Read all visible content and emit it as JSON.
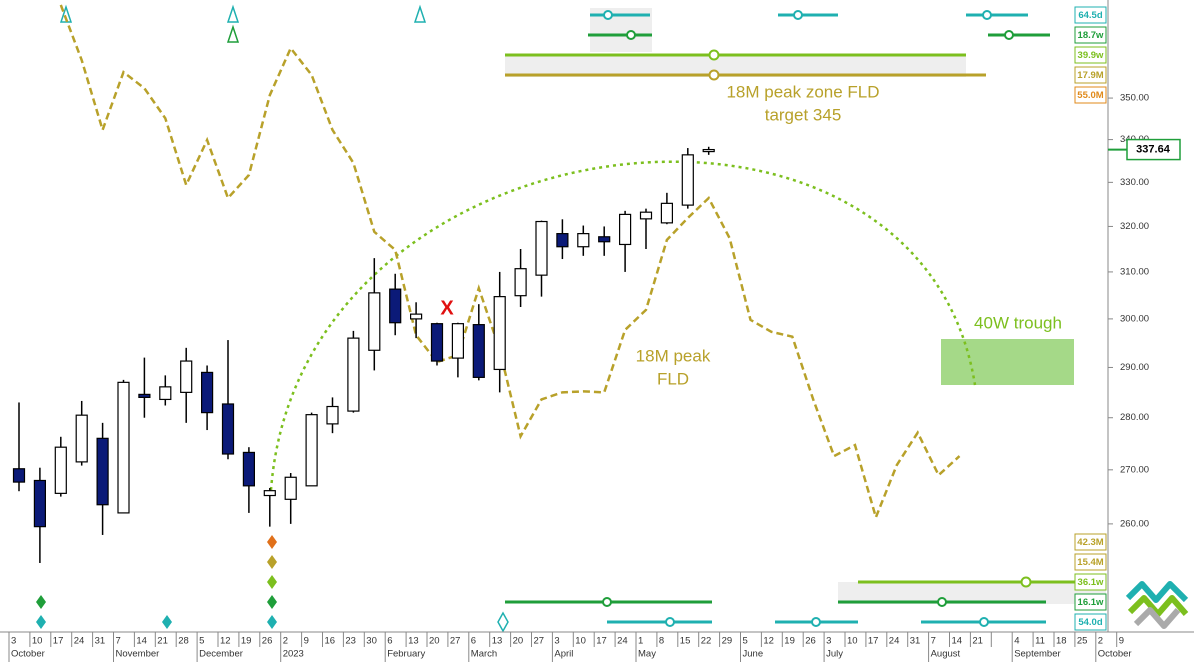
{
  "chart_data": {
    "type": "candlestick",
    "categories": [
      "3",
      "10",
      "17",
      "24",
      "31",
      "7",
      "14",
      "21",
      "28",
      "5",
      "12",
      "19",
      "26",
      "2",
      "9",
      "16",
      "23",
      "30",
      "6",
      "13",
      "20",
      "27",
      "6",
      "13",
      "20",
      "27",
      "3",
      "10",
      "17",
      "24",
      "1",
      "8",
      "15",
      "22",
      "29",
      "5",
      "12",
      "19",
      "26",
      "3",
      "10",
      "17",
      "24",
      "31",
      "7",
      "14",
      "21",
      null,
      "4",
      "11",
      "18",
      "25",
      "2",
      "9"
    ],
    "x_months": [
      "October",
      null,
      null,
      null,
      null,
      "November",
      null,
      null,
      null,
      "December",
      null,
      null,
      null,
      "2023",
      null,
      null,
      null,
      null,
      "February",
      null,
      null,
      null,
      "March",
      null,
      null,
      null,
      "April",
      null,
      null,
      null,
      "May",
      null,
      null,
      null,
      null,
      "June",
      null,
      null,
      null,
      "July",
      null,
      null,
      null,
      null,
      "August",
      null,
      null,
      null,
      "September",
      null,
      null,
      null,
      "October",
      null
    ],
    "open": [
      270.2,
      268,
      265.6,
      271.5,
      276,
      262,
      284.6,
      283.6,
      285,
      289,
      282.7,
      273.3,
      265.2,
      264.5,
      267,
      278.8,
      281.3,
      293.5,
      306.3,
      300,
      299,
      291.9,
      298.8,
      289.6,
      304.9,
      309.3,
      318.4,
      315.5,
      317.7,
      316,
      321.7,
      320.8,
      324.8,
      337.6,
      null,
      null,
      null,
      null,
      null,
      null,
      null,
      null,
      null,
      null,
      null,
      null,
      null,
      null,
      null,
      null,
      null,
      null,
      null,
      null
    ],
    "high": [
      283,
      270.4,
      276.3,
      283.3,
      279,
      287.5,
      292,
      288.4,
      294,
      290.4,
      295.6,
      274.3,
      266.6,
      269.4,
      281,
      284,
      297.5,
      313,
      309.6,
      303.5,
      299.2,
      299.2,
      303.1,
      310,
      315,
      321.3,
      321.6,
      320.2,
      320,
      323.5,
      324,
      327.6,
      338,
      338.3,
      null,
      null,
      null,
      null,
      null,
      null,
      null,
      null,
      null,
      null,
      null,
      null,
      null,
      null,
      null,
      null,
      null,
      null,
      null,
      null
    ],
    "low": [
      266,
      253,
      265,
      270.8,
      258,
      262,
      280,
      282.4,
      279,
      277.6,
      272,
      262,
      259.5,
      260,
      267,
      277,
      281,
      289.4,
      296.6,
      296,
      290.4,
      288,
      287.4,
      285,
      302.5,
      304.7,
      312.8,
      313.5,
      313.5,
      310,
      315,
      320.5,
      324,
      336.4,
      null,
      null,
      null,
      null,
      null,
      null,
      null,
      null,
      null,
      null,
      null,
      null,
      null,
      null,
      null,
      null,
      null,
      null,
      null,
      null
    ],
    "close": [
      267.7,
      259.5,
      274.3,
      280.5,
      263.5,
      287,
      284,
      286.1,
      291.3,
      281,
      273,
      267,
      266.1,
      268.6,
      280.6,
      282.2,
      296,
      305.5,
      299.2,
      301,
      291.3,
      299,
      288,
      304.7,
      310.7,
      321.1,
      315.5,
      318.4,
      316.6,
      322.7,
      323.2,
      325.2,
      336.4,
      337.64,
      null,
      null,
      null,
      null,
      null,
      null,
      null,
      null,
      null,
      null,
      null,
      null,
      null,
      null,
      null,
      null,
      null,
      null,
      null,
      null
    ],
    "up_color": "#ffffff",
    "down_color": "#0b1a78",
    "fld": {
      "color": "#b8a12a",
      "values": [
        null,
        null,
        373.5,
        359.4,
        342.3,
        356.4,
        352.4,
        345.1,
        329.4,
        339.9,
        326.4,
        331.7,
        350.7,
        362.4,
        355.7,
        342.3,
        334.5,
        318.8,
        314.8,
        296.6,
        291.1,
        292.5,
        306.5,
        293.6,
        276.4,
        283.6,
        285,
        285.2,
        285,
        297.7,
        301.9,
        317,
        321.9,
        326.4,
        317.4,
        299.8,
        297.3,
        296.3,
        283.6,
        272.6,
        274.7,
        261.2,
        270.9,
        277.1,
        269,
        272.6,
        null,
        null,
        null,
        null,
        null,
        null,
        null,
        null
      ]
    },
    "ylim": [
      241.1,
      374.8
    ],
    "log_scale": true,
    "yticks": [
      {
        "value": 260,
        "label": "260.00"
      },
      {
        "value": 270,
        "label": "270.00"
      },
      {
        "value": 280,
        "label": "280.00"
      },
      {
        "value": 290,
        "label": "290.00"
      },
      {
        "value": 300,
        "label": "300.00"
      },
      {
        "value": 310,
        "label": "310.00"
      },
      {
        "value": 320,
        "label": "320.00"
      },
      {
        "value": 330,
        "label": "330.00"
      },
      {
        "value": 340,
        "label": "340.00"
      },
      {
        "value": 350,
        "label": "350.00"
      }
    ],
    "grid": false,
    "last_price": 337.64,
    "annotations": {
      "target_zone": [
        "18M peak zone FLD",
        "target 345"
      ],
      "fld_label": [
        "18M peak",
        "FLD"
      ],
      "trough": "40W trough",
      "marker": "X"
    },
    "cycles_top": [
      {
        "label": "64.5d",
        "color": "#1fb0b0"
      },
      {
        "label": "18.7w",
        "color": "#1f9e3a"
      },
      {
        "label": "39.9w",
        "color": "#7cbf1e"
      },
      {
        "label": "17.9M",
        "color": "#b8a12a"
      },
      {
        "label": "55.0M",
        "color": "#e08a1a"
      }
    ],
    "cycles_bottom": [
      {
        "label": "42.3M",
        "color": "#b8a12a"
      },
      {
        "label": "15.4M",
        "color": "#b8a12a"
      },
      {
        "label": "36.1w",
        "color": "#7cbf1e"
      },
      {
        "label": "16.1w",
        "color": "#1f9e3a"
      },
      {
        "label": "54.0d",
        "color": "#1fb0b0"
      }
    ]
  }
}
